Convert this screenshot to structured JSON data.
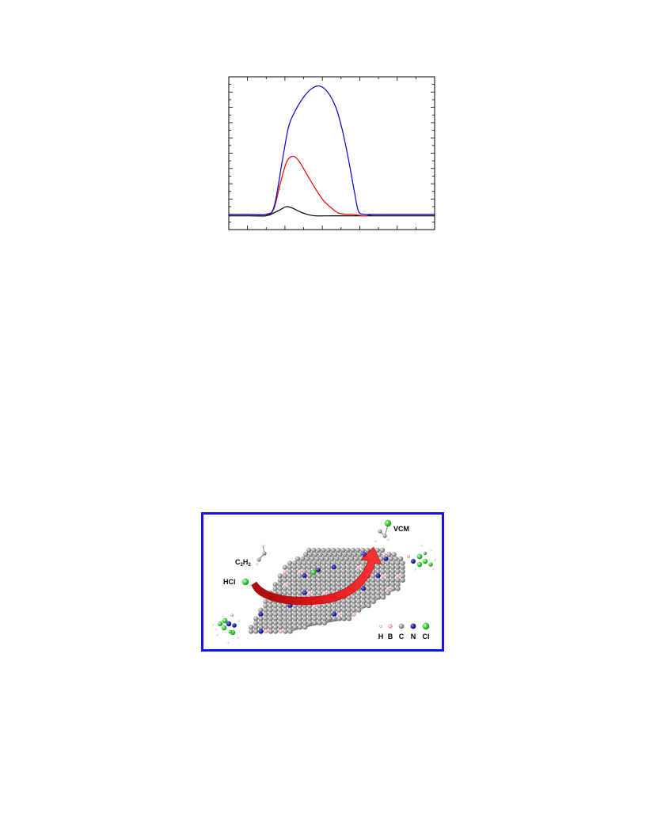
{
  "chart_data": {
    "type": "line",
    "title": "",
    "xlabel": "",
    "ylabel": "",
    "xlim": [
      0,
      100
    ],
    "ylim": [
      0,
      100
    ],
    "grid": false,
    "x_minor_ticks": 11,
    "y_minor_ticks": 20,
    "series": [
      {
        "color": "#0000cc",
        "x": [
          0,
          10,
          18,
          22,
          26,
          29,
          32,
          36,
          40,
          44,
          48,
          52,
          55,
          58,
          61,
          63,
          66,
          70,
          80,
          90,
          100
        ],
        "y": [
          10,
          10,
          10,
          15,
          45,
          67,
          77,
          86,
          92,
          94,
          90,
          80,
          66,
          47,
          25,
          12,
          10,
          10,
          10,
          10,
          10
        ]
      },
      {
        "color": "#ee0000",
        "x": [
          0,
          10,
          19,
          22,
          25,
          28,
          31,
          34,
          38,
          42,
          46,
          50,
          53,
          57,
          60,
          66,
          70,
          76,
          82,
          90,
          100
        ],
        "y": [
          10,
          10,
          10,
          14,
          30,
          44,
          48,
          45,
          36,
          27,
          19,
          14,
          11,
          10,
          10,
          9,
          10,
          10,
          10,
          10,
          10
        ]
      },
      {
        "color": "#000000",
        "x": [
          0,
          10,
          18,
          22,
          25,
          28,
          31,
          34,
          38,
          42,
          50,
          60,
          70,
          80,
          90,
          100
        ],
        "y": [
          9,
          9,
          9,
          11,
          13,
          15,
          14,
          12,
          10,
          9,
          9,
          9,
          9,
          9,
          9,
          9
        ]
      }
    ]
  },
  "toc_figure": {
    "border_color": "#1515e0",
    "labels": {
      "c2h2_main": "C",
      "c2h2_sub1": "2",
      "c2h2_mid": "H",
      "c2h2_sub2": "2",
      "hcl": "HCl",
      "vcm": "VCM"
    },
    "legend": [
      {
        "symbol": "H",
        "color": "#ffffff"
      },
      {
        "symbol": "B",
        "color": "#f2b6c4"
      },
      {
        "symbol": "C",
        "color": "#909090"
      },
      {
        "symbol": "N",
        "color": "#1a1aa6"
      },
      {
        "symbol": "Cl",
        "color": "#3ad43a"
      }
    ]
  }
}
